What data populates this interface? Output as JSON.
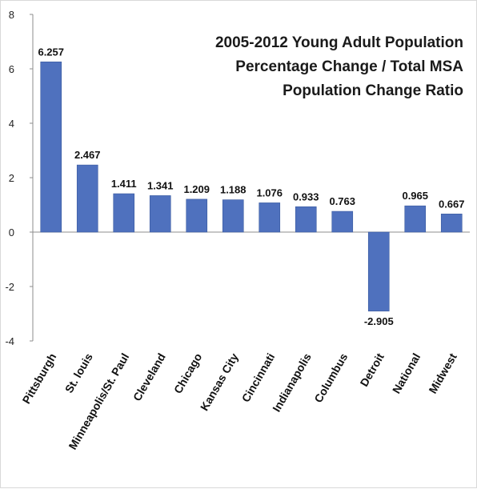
{
  "chart_data": {
    "type": "bar",
    "title_lines": [
      "2005-2012 Young Adult Population",
      "Percentage Change / Total MSA",
      "Population Change Ratio"
    ],
    "xlabel": "",
    "ylabel": "",
    "categories": [
      "Pittsburgh",
      "St. louis",
      "Minneapolis/St. Paul",
      "Cleveland",
      "Chicago",
      "Kansas City",
      "Cincinnati",
      "Indianapolis",
      "Columbus",
      "Detroit",
      "National",
      "Midwest"
    ],
    "values": [
      6.257,
      2.467,
      1.411,
      1.341,
      1.209,
      1.188,
      1.076,
      0.933,
      0.763,
      -2.905,
      0.965,
      0.667
    ],
    "data_labels": [
      "6.257",
      "2.467",
      "1.411",
      "1.341",
      "1.209",
      "1.188",
      "1.076",
      "0.933",
      "0.763",
      "-2.905",
      "0.965",
      "0.667"
    ],
    "ylim": [
      -4,
      8
    ],
    "yticks": [
      -4,
      -2,
      0,
      2,
      4,
      6,
      8
    ],
    "ytick_labels": [
      "-4",
      "-2",
      "0",
      "2",
      "4",
      "6",
      "8"
    ],
    "grid": false,
    "legend": "none",
    "bar_color": "#4f71be",
    "bar_edge_color": "#3a5a9e"
  }
}
